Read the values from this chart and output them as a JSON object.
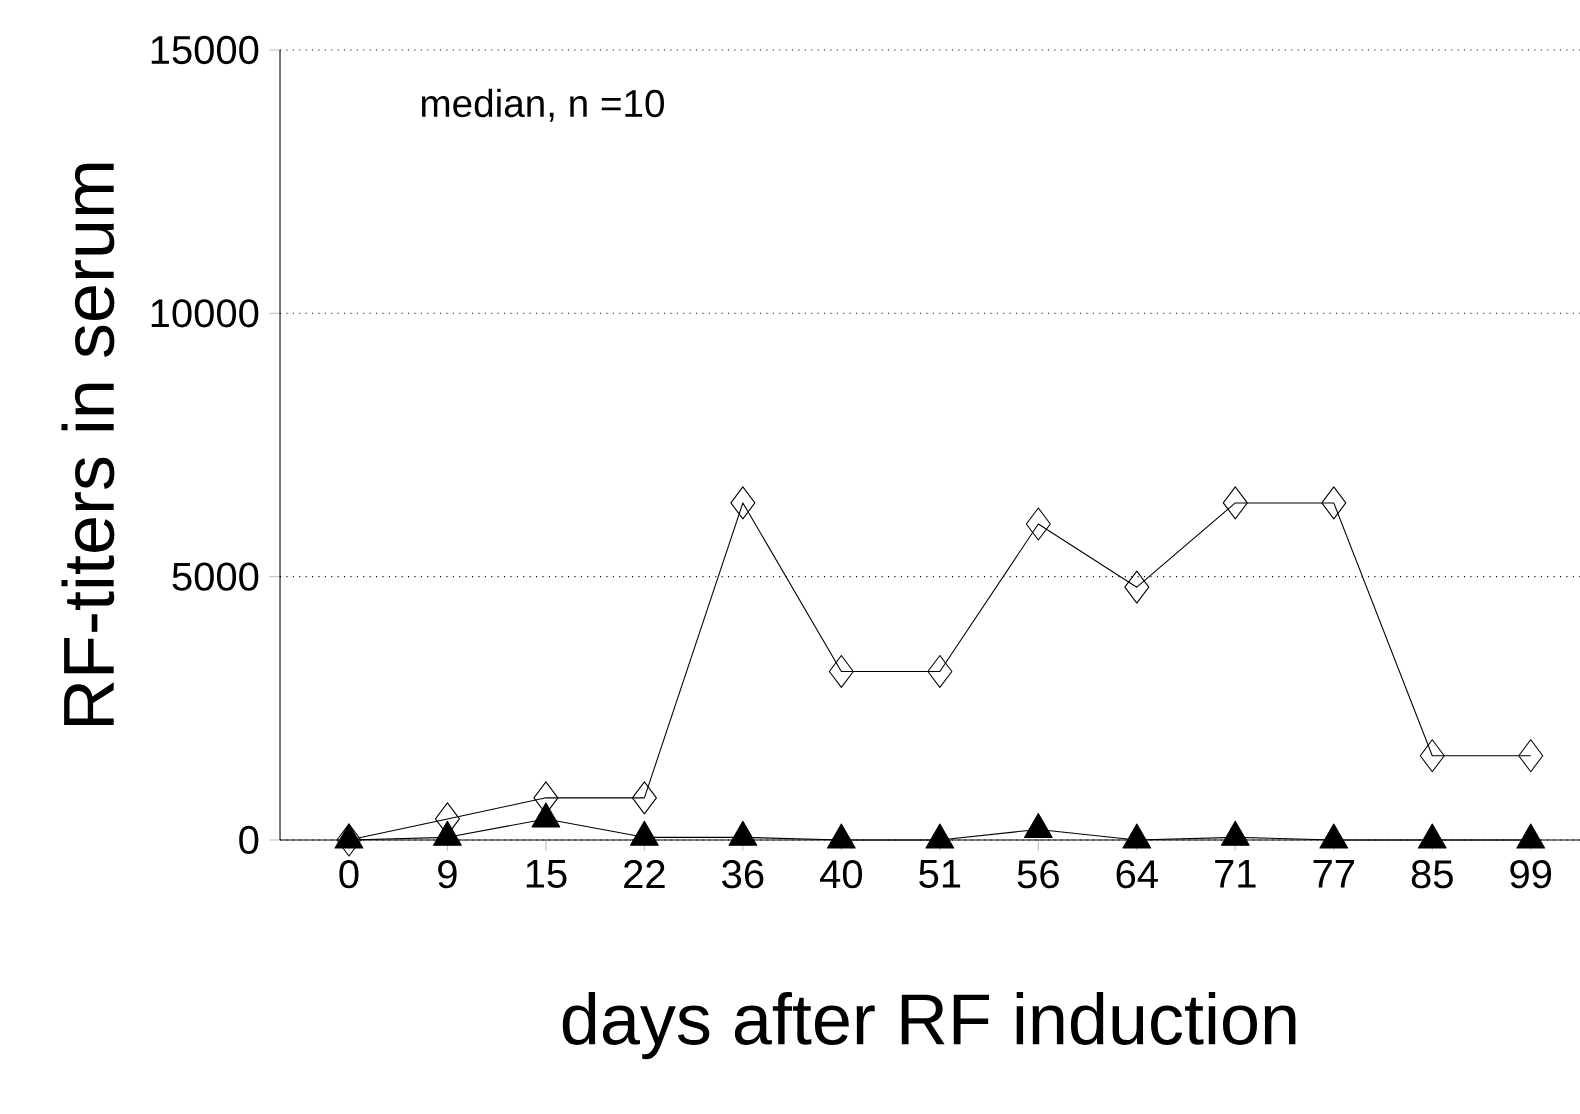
{
  "chart_data": {
    "type": "line",
    "xlabel": "days after RF induction",
    "ylabel": "RF-titers in serum",
    "categories": [
      "0",
      "9",
      "15",
      "22",
      "36",
      "40",
      "51",
      "56",
      "64",
      "71",
      "77",
      "85",
      "99"
    ],
    "series": [
      {
        "color": "#000000",
        "marker": "diamond",
        "values": [
          0,
          400,
          800,
          800,
          6400,
          3200,
          3200,
          6000,
          4800,
          6400,
          6400,
          1600,
          1600
        ]
      },
      {
        "color": "#000000",
        "marker": "triangle",
        "values": [
          0,
          50,
          400,
          50,
          50,
          0,
          0,
          200,
          0,
          50,
          0,
          0,
          0
        ]
      }
    ],
    "ylim": [
      0,
      15000
    ],
    "yticks": [
      0,
      5000,
      10000,
      15000
    ],
    "grid": "y",
    "legend": false,
    "line_style": "solid",
    "annotations": [
      "median, n =10"
    ]
  }
}
